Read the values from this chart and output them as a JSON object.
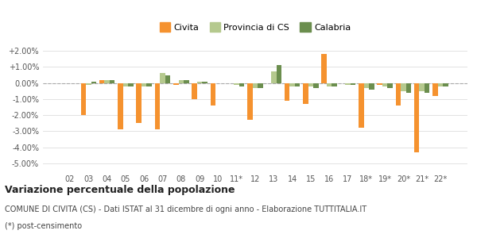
{
  "categories": [
    "02",
    "03",
    "04",
    "05",
    "06",
    "07",
    "08",
    "09",
    "10",
    "11*",
    "12",
    "13",
    "14",
    "15",
    "16",
    "17",
    "18*",
    "19*",
    "20*",
    "21*",
    "22*"
  ],
  "civita": [
    0.0,
    -0.02,
    0.002,
    -0.029,
    -0.025,
    -0.029,
    -0.001,
    -0.01,
    -0.014,
    0.0,
    -0.023,
    0.0,
    -0.011,
    -0.013,
    0.018,
    0.0,
    -0.028,
    -0.001,
    -0.014,
    -0.043,
    -0.008
  ],
  "provincia_cs": [
    0.0,
    -0.001,
    0.002,
    -0.002,
    -0.002,
    0.006,
    0.002,
    0.001,
    0.0,
    -0.001,
    -0.003,
    0.007,
    -0.002,
    -0.002,
    -0.002,
    -0.001,
    -0.003,
    -0.002,
    -0.005,
    -0.005,
    -0.002
  ],
  "calabria": [
    0.0,
    0.001,
    0.002,
    -0.002,
    -0.002,
    0.005,
    0.002,
    0.001,
    0.0,
    -0.002,
    -0.003,
    0.011,
    -0.002,
    -0.003,
    -0.002,
    -0.001,
    -0.004,
    -0.003,
    -0.006,
    -0.006,
    -0.002
  ],
  "civita_color": "#f5922f",
  "provincia_cs_color": "#b5c98e",
  "calabria_color": "#6b8e4e",
  "background_color": "#ffffff",
  "grid_color": "#dddddd",
  "zero_line_color": "#aaaaaa",
  "ylim": [
    -0.055,
    0.025
  ],
  "yticks": [
    -0.05,
    -0.04,
    -0.03,
    -0.02,
    -0.01,
    0.0,
    0.01,
    0.02
  ],
  "ytick_labels": [
    "-5.00%",
    "-4.00%",
    "-3.00%",
    "-2.00%",
    "-1.00%",
    "0.00%",
    "+1.00%",
    "+2.00%"
  ],
  "title": "Variazione percentuale della popolazione",
  "subtitle": "COMUNE DI CIVITA (CS) - Dati ISTAT al 31 dicembre di ogni anno - Elaborazione TUTTITALIA.IT",
  "footnote": "(*) post-censimento",
  "legend_labels": [
    "Civita",
    "Provincia di CS",
    "Calabria"
  ],
  "bar_width": 0.28
}
